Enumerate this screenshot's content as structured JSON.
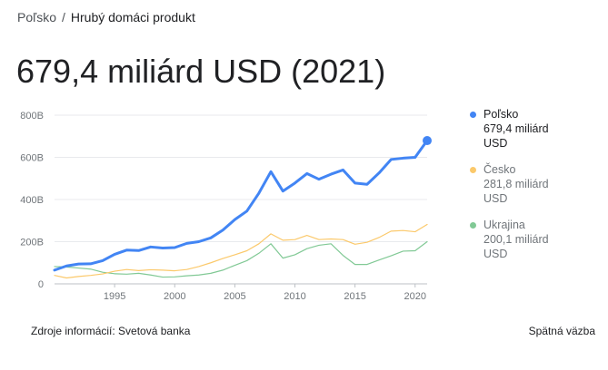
{
  "breadcrumb": {
    "country": "Poľsko",
    "separator": "/",
    "indicator": "Hrubý domáci produkt"
  },
  "headline": "679,4 miliárd USD (2021)",
  "legend": [
    {
      "name": "Poľsko",
      "value": "679,4 miliárd",
      "unit": "USD",
      "color": "#4285f4",
      "active": true
    },
    {
      "name": "Česko",
      "value": "281,8 miliárd",
      "unit": "USD",
      "color": "#fbc96b",
      "active": false
    },
    {
      "name": "Ukrajina",
      "value": "200,1 miliárd",
      "unit": "USD",
      "color": "#81c995",
      "active": false
    }
  ],
  "footer": {
    "source": "Zdroje informácií: Svetová banka",
    "feedback": "Spätná väzba"
  },
  "chart_data": {
    "type": "line",
    "ylim": [
      0,
      800
    ],
    "xlim": [
      1990,
      2021
    ],
    "y_ticks": [
      {
        "value": 0,
        "label": "0"
      },
      {
        "value": 200,
        "label": "200B"
      },
      {
        "value": 400,
        "label": "400B"
      },
      {
        "value": 600,
        "label": "600B"
      },
      {
        "value": 800,
        "label": "800B"
      }
    ],
    "x_ticks": [
      {
        "value": 1995,
        "label": "1995"
      },
      {
        "value": 2000,
        "label": "2000"
      },
      {
        "value": 2005,
        "label": "2005"
      },
      {
        "value": 2010,
        "label": "2010"
      },
      {
        "value": 2015,
        "label": "2015"
      },
      {
        "value": 2020,
        "label": "2020"
      }
    ],
    "grid": true,
    "x": [
      1990,
      1991,
      1992,
      1993,
      1994,
      1995,
      1996,
      1997,
      1998,
      1999,
      2000,
      2001,
      2002,
      2003,
      2004,
      2005,
      2006,
      2007,
      2008,
      2009,
      2010,
      2011,
      2012,
      2013,
      2014,
      2015,
      2016,
      2017,
      2018,
      2019,
      2020,
      2021
    ],
    "series": [
      {
        "name": "Poľsko",
        "color": "#4285f4",
        "width": 3,
        "values": [
          65,
          85,
          94,
          95,
          110,
          140,
          160,
          158,
          175,
          170,
          172,
          192,
          200,
          218,
          255,
          305,
          345,
          430,
          532,
          440,
          478,
          523,
          496,
          520,
          540,
          478,
          472,
          526,
          590,
          596,
          600,
          679.4
        ]
      },
      {
        "name": "Česko",
        "color": "#fbc96b",
        "width": 1.2,
        "values": [
          40,
          28,
          35,
          40,
          47,
          60,
          68,
          63,
          67,
          65,
          62,
          68,
          82,
          100,
          120,
          138,
          157,
          190,
          237,
          207,
          210,
          230,
          210,
          213,
          210,
          188,
          197,
          220,
          250,
          253,
          247,
          281.8
        ]
      },
      {
        "name": "Ukrajina",
        "color": "#81c995",
        "width": 1.2,
        "values": [
          82,
          80,
          75,
          70,
          55,
          48,
          46,
          50,
          42,
          32,
          33,
          38,
          42,
          50,
          65,
          88,
          110,
          145,
          190,
          122,
          138,
          167,
          183,
          190,
          135,
          92,
          92,
          113,
          133,
          155,
          157,
          200.1
        ]
      }
    ]
  }
}
